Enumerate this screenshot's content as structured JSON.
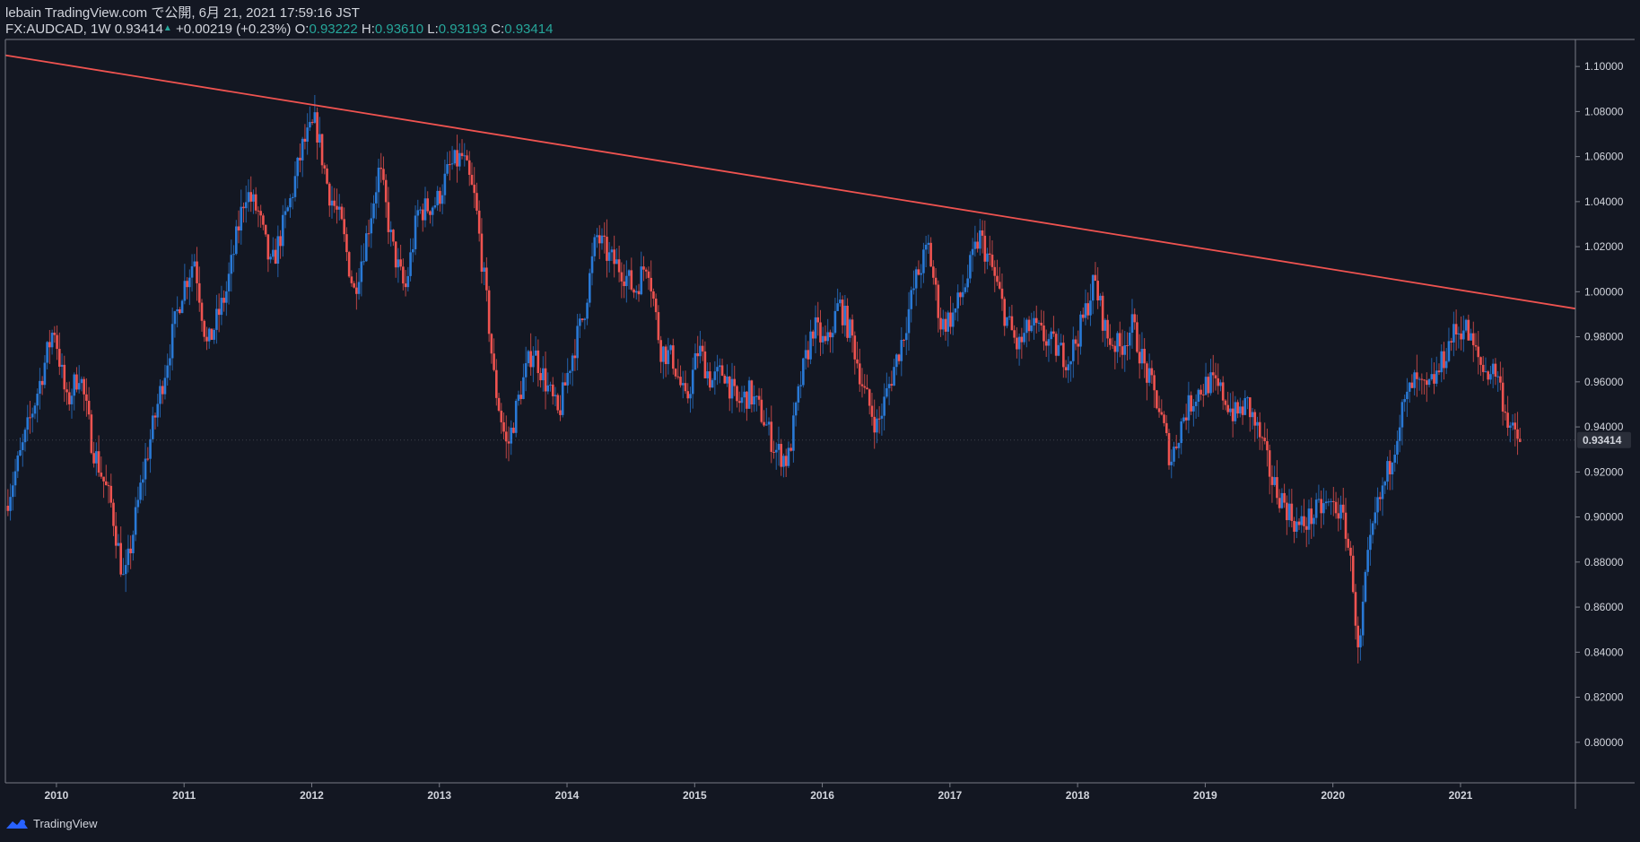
{
  "header": {
    "line1": "lebain TradingView.com で公開, 6月 21, 2021 17:59:16 JST",
    "symbol": "FX:AUDCAD, 1W",
    "last": "0.93414",
    "change": "+0.00219 (+0.23%)",
    "o_label": "O:",
    "o_value": "0.93222",
    "h_label": "H:",
    "h_value": "0.93610",
    "l_label": "L:",
    "l_value": "0.93193",
    "c_label": "C:",
    "c_value": "0.93414"
  },
  "footer": {
    "brand": "TradingView"
  },
  "colors": {
    "background": "#131722",
    "up": "#2979d6",
    "down": "#ef5350",
    "trendline": "#ef5350",
    "text": "#d1d4dc",
    "axis_line": "#787b86",
    "ohlc_value": "#26a69a"
  },
  "chart_data": {
    "type": "candlestick",
    "title": "",
    "xlabel": "",
    "ylabel": "",
    "grid": false,
    "x_ticks": [
      "2010",
      "2011",
      "2012",
      "2013",
      "2014",
      "2015",
      "2016",
      "2017",
      "2018",
      "2019",
      "2020",
      "2021"
    ],
    "y_ticks": [
      "1.10000",
      "1.08000",
      "1.06000",
      "1.04000",
      "1.02000",
      "1.00000",
      "0.98000",
      "0.96000",
      "0.94000",
      "0.92000",
      "0.90000",
      "0.88000",
      "0.86000",
      "0.84000",
      "0.82000",
      "0.80000"
    ],
    "ylim": [
      0.782,
      1.112
    ],
    "xlim": [
      2009.6,
      2021.9
    ],
    "last_price_label": "0.93414",
    "trendline": {
      "points": [
        [
          2009.6,
          1.105
        ],
        [
          2021.9,
          0.9925
        ]
      ]
    },
    "price_path": [
      [
        2009.62,
        0.905
      ],
      [
        2009.75,
        0.93
      ],
      [
        2009.9,
        0.962
      ],
      [
        2010.0,
        0.985
      ],
      [
        2010.1,
        0.95
      ],
      [
        2010.2,
        0.965
      ],
      [
        2010.3,
        0.932
      ],
      [
        2010.45,
        0.905
      ],
      [
        2010.55,
        0.87
      ],
      [
        2010.7,
        0.92
      ],
      [
        2010.85,
        0.96
      ],
      [
        2011.0,
        1.0
      ],
      [
        2011.1,
        1.015
      ],
      [
        2011.2,
        0.975
      ],
      [
        2011.35,
        1.0
      ],
      [
        2011.5,
        1.045
      ],
      [
        2011.6,
        1.035
      ],
      [
        2011.7,
        1.01
      ],
      [
        2011.85,
        1.04
      ],
      [
        2011.95,
        1.065
      ],
      [
        2012.05,
        1.075
      ],
      [
        2012.15,
        1.045
      ],
      [
        2012.25,
        1.03
      ],
      [
        2012.35,
        1.0
      ],
      [
        2012.45,
        1.025
      ],
      [
        2012.55,
        1.055
      ],
      [
        2012.65,
        1.02
      ],
      [
        2012.75,
        1.0
      ],
      [
        2012.85,
        1.035
      ],
      [
        2013.0,
        1.04
      ],
      [
        2013.1,
        1.055
      ],
      [
        2013.2,
        1.06
      ],
      [
        2013.3,
        1.04
      ],
      [
        2013.4,
        0.99
      ],
      [
        2013.45,
        0.96
      ],
      [
        2013.55,
        0.93
      ],
      [
        2013.65,
        0.955
      ],
      [
        2013.75,
        0.975
      ],
      [
        2013.85,
        0.96
      ],
      [
        2013.95,
        0.945
      ],
      [
        2014.05,
        0.97
      ],
      [
        2014.15,
        0.99
      ],
      [
        2014.25,
        1.025
      ],
      [
        2014.35,
        1.015
      ],
      [
        2014.45,
        1.01
      ],
      [
        2014.55,
        1.0
      ],
      [
        2014.65,
        1.015
      ],
      [
        2014.75,
        0.975
      ],
      [
        2014.85,
        0.97
      ],
      [
        2014.95,
        0.95
      ],
      [
        2015.05,
        0.975
      ],
      [
        2015.15,
        0.96
      ],
      [
        2015.25,
        0.965
      ],
      [
        2015.35,
        0.95
      ],
      [
        2015.45,
        0.955
      ],
      [
        2015.55,
        0.945
      ],
      [
        2015.65,
        0.93
      ],
      [
        2015.75,
        0.925
      ],
      [
        2015.85,
        0.96
      ],
      [
        2015.95,
        0.985
      ],
      [
        2016.05,
        0.975
      ],
      [
        2016.15,
        0.995
      ],
      [
        2016.25,
        0.98
      ],
      [
        2016.35,
        0.955
      ],
      [
        2016.45,
        0.94
      ],
      [
        2016.55,
        0.96
      ],
      [
        2016.65,
        0.98
      ],
      [
        2016.75,
        1.005
      ],
      [
        2016.85,
        1.02
      ],
      [
        2016.95,
        0.985
      ],
      [
        2017.05,
        0.99
      ],
      [
        2017.15,
        1.005
      ],
      [
        2017.25,
        1.025
      ],
      [
        2017.35,
        1.01
      ],
      [
        2017.45,
        0.99
      ],
      [
        2017.55,
        0.975
      ],
      [
        2017.65,
        0.985
      ],
      [
        2017.75,
        0.98
      ],
      [
        2017.85,
        0.975
      ],
      [
        2017.95,
        0.97
      ],
      [
        2018.05,
        0.985
      ],
      [
        2018.15,
        1.005
      ],
      [
        2018.25,
        0.98
      ],
      [
        2018.35,
        0.975
      ],
      [
        2018.45,
        0.985
      ],
      [
        2018.55,
        0.965
      ],
      [
        2018.65,
        0.95
      ],
      [
        2018.75,
        0.925
      ],
      [
        2018.85,
        0.945
      ],
      [
        2018.95,
        0.955
      ],
      [
        2019.05,
        0.96
      ],
      [
        2019.15,
        0.955
      ],
      [
        2019.25,
        0.945
      ],
      [
        2019.35,
        0.95
      ],
      [
        2019.45,
        0.935
      ],
      [
        2019.55,
        0.915
      ],
      [
        2019.65,
        0.905
      ],
      [
        2019.75,
        0.895
      ],
      [
        2019.85,
        0.9
      ],
      [
        2019.95,
        0.905
      ],
      [
        2020.05,
        0.905
      ],
      [
        2020.12,
        0.895
      ],
      [
        2020.18,
        0.87
      ],
      [
        2020.22,
        0.835
      ],
      [
        2020.28,
        0.875
      ],
      [
        2020.35,
        0.9
      ],
      [
        2020.45,
        0.92
      ],
      [
        2020.55,
        0.945
      ],
      [
        2020.65,
        0.96
      ],
      [
        2020.75,
        0.955
      ],
      [
        2020.85,
        0.965
      ],
      [
        2020.95,
        0.98
      ],
      [
        2021.05,
        0.985
      ],
      [
        2021.12,
        0.975
      ],
      [
        2021.2,
        0.965
      ],
      [
        2021.3,
        0.965
      ],
      [
        2021.38,
        0.945
      ],
      [
        2021.44,
        0.935
      ],
      [
        2021.47,
        0.9341
      ]
    ]
  }
}
